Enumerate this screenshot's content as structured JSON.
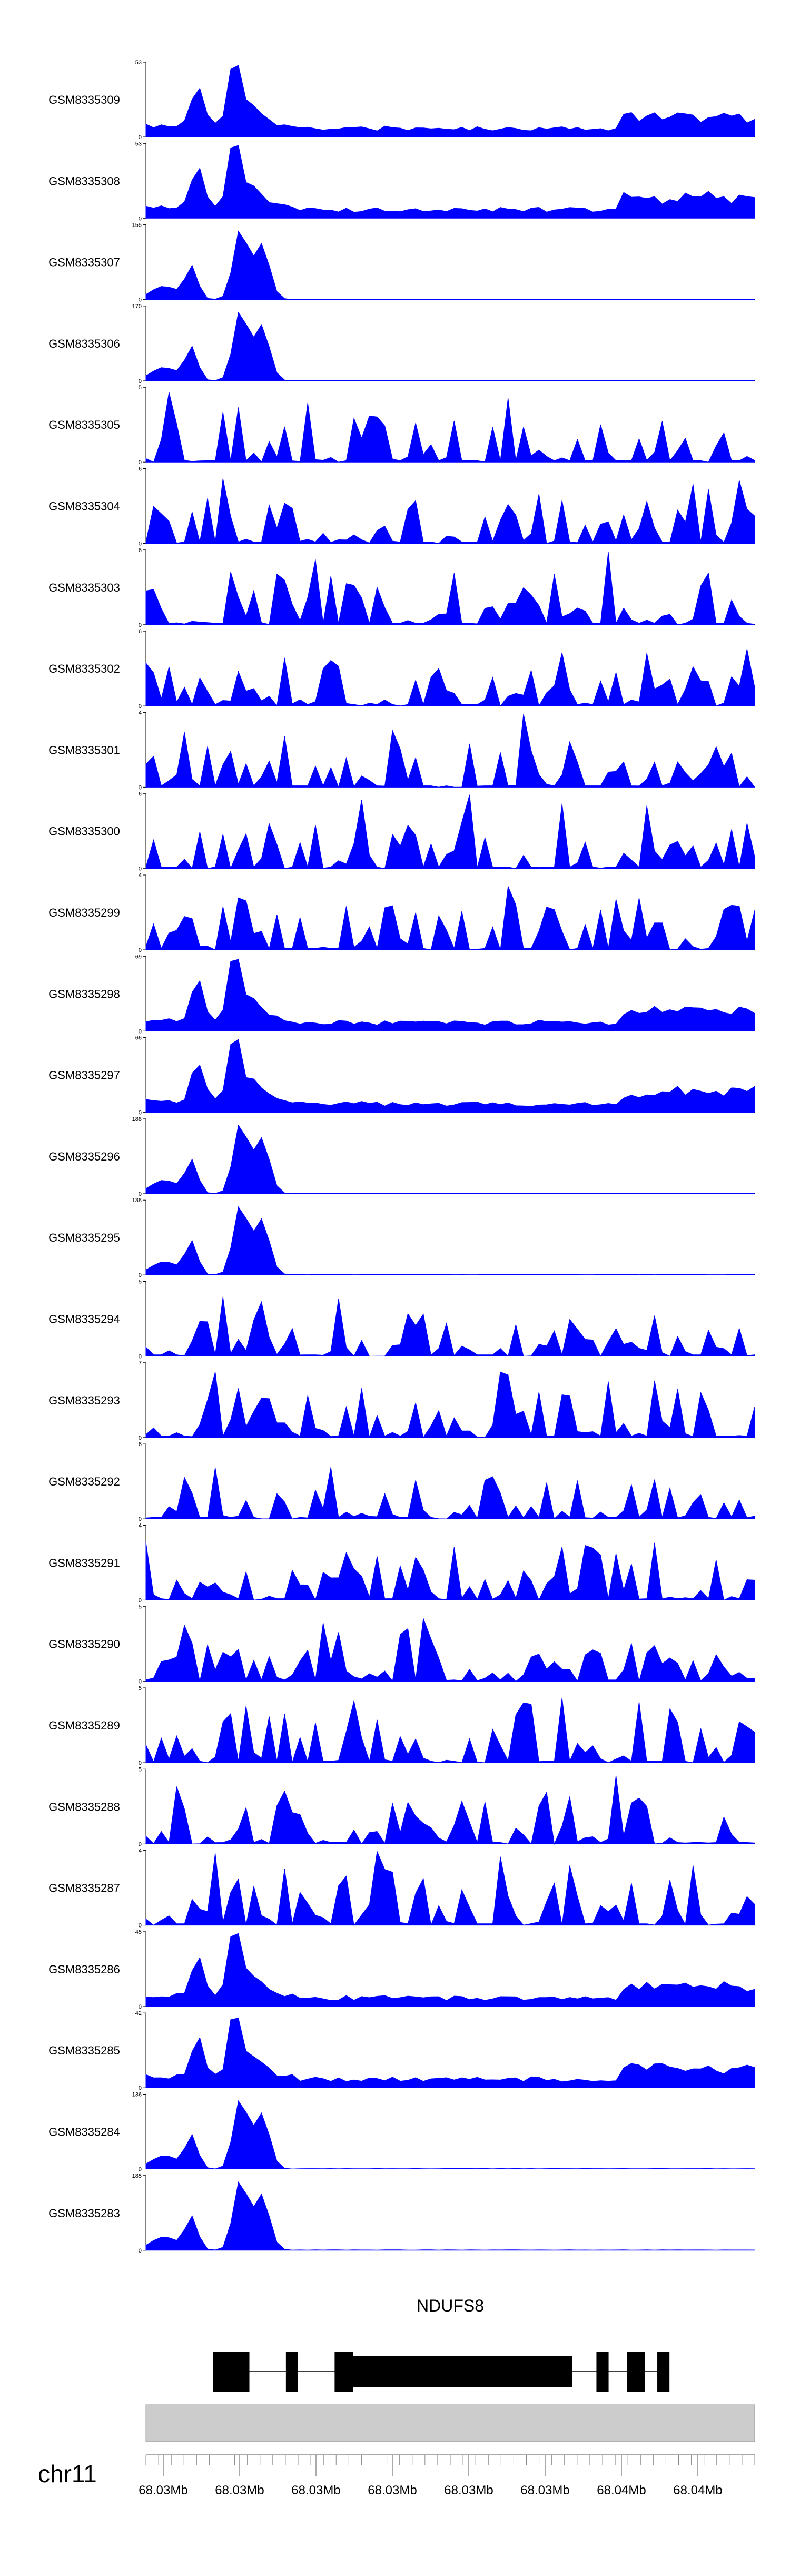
{
  "chart_data": {
    "type": "area",
    "title": "",
    "fill_color": "#0000ff",
    "points_per_track": 80,
    "tracks": [
      {
        "name": "GSM8335309",
        "ymax": "53",
        "kind": "A",
        "seed": 11
      },
      {
        "name": "GSM8335308",
        "ymax": "53",
        "kind": "A",
        "seed": 12
      },
      {
        "name": "GSM8335307",
        "ymax": "155",
        "kind": "B",
        "seed": 13
      },
      {
        "name": "GSM8335306",
        "ymax": "170",
        "kind": "B",
        "seed": 14
      },
      {
        "name": "GSM8335305",
        "ymax": "5",
        "kind": "C",
        "seed": 15
      },
      {
        "name": "GSM8335304",
        "ymax": "6",
        "kind": "C",
        "seed": 16
      },
      {
        "name": "GSM8335303",
        "ymax": "6",
        "kind": "C",
        "seed": 17
      },
      {
        "name": "GSM8335302",
        "ymax": "6",
        "kind": "C",
        "seed": 18
      },
      {
        "name": "GSM8335301",
        "ymax": "4",
        "kind": "C",
        "seed": 19
      },
      {
        "name": "GSM8335300",
        "ymax": "6",
        "kind": "C",
        "seed": 20
      },
      {
        "name": "GSM8335299",
        "ymax": "4",
        "kind": "C",
        "seed": 21
      },
      {
        "name": "GSM8335298",
        "ymax": "69",
        "kind": "A",
        "seed": 22
      },
      {
        "name": "GSM8335297",
        "ymax": "66",
        "kind": "A",
        "seed": 23
      },
      {
        "name": "GSM8335296",
        "ymax": "188",
        "kind": "B",
        "seed": 24
      },
      {
        "name": "GSM8335295",
        "ymax": "138",
        "kind": "B",
        "seed": 25
      },
      {
        "name": "GSM8335294",
        "ymax": "5",
        "kind": "C",
        "seed": 26
      },
      {
        "name": "GSM8335293",
        "ymax": "7",
        "kind": "C",
        "seed": 27
      },
      {
        "name": "GSM8335292",
        "ymax": "6",
        "kind": "C",
        "seed": 28
      },
      {
        "name": "GSM8335291",
        "ymax": "4",
        "kind": "C",
        "seed": 29
      },
      {
        "name": "GSM8335290",
        "ymax": "5",
        "kind": "C",
        "seed": 30
      },
      {
        "name": "GSM8335289",
        "ymax": "5",
        "kind": "C",
        "seed": 31
      },
      {
        "name": "GSM8335288",
        "ymax": "5",
        "kind": "C",
        "seed": 32
      },
      {
        "name": "GSM8335287",
        "ymax": "4",
        "kind": "C",
        "seed": 33
      },
      {
        "name": "GSM8335286",
        "ymax": "45",
        "kind": "A",
        "seed": 34
      },
      {
        "name": "GSM8335285",
        "ymax": "42",
        "kind": "A",
        "seed": 35
      },
      {
        "name": "GSM8335284",
        "ymax": "136",
        "kind": "B",
        "seed": 36
      },
      {
        "name": "GSM8335283",
        "ymax": "185",
        "kind": "B",
        "seed": 37
      }
    ],
    "gene": {
      "name": "NDUFS8",
      "exons": [
        [
          0.11,
          0.17
        ],
        [
          0.23,
          0.25
        ],
        [
          0.31,
          0.34
        ],
        [
          0.34,
          0.7
        ],
        [
          0.74,
          0.76
        ],
        [
          0.79,
          0.82
        ],
        [
          0.84,
          0.86
        ]
      ]
    },
    "chromosome": "chr11",
    "x_tick_labels": [
      "68.03Mb",
      "68.03Mb",
      "68.03Mb",
      "68.03Mb",
      "68.03Mb",
      "68.03Mb",
      "68.04Mb",
      "68.04Mb"
    ]
  }
}
